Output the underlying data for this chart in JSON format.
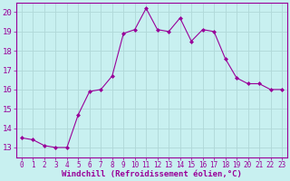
{
  "x": [
    0,
    1,
    2,
    3,
    4,
    5,
    6,
    7,
    8,
    9,
    10,
    11,
    12,
    13,
    14,
    15,
    16,
    17,
    18,
    19,
    20,
    21,
    22,
    23
  ],
  "y": [
    13.5,
    13.4,
    13.1,
    13.0,
    13.0,
    14.7,
    15.9,
    16.0,
    16.7,
    18.9,
    19.1,
    20.2,
    19.1,
    19.0,
    19.7,
    18.5,
    19.1,
    19.0,
    17.6,
    16.6,
    16.3,
    16.3,
    16.0,
    16.0
  ],
  "line_color": "#990099",
  "marker": "D",
  "marker_size": 2.0,
  "bg_color": "#c8f0f0",
  "grid_color": "#b0d8d8",
  "xlabel": "Windchill (Refroidissement éolien,°C)",
  "ylim": [
    12.5,
    20.5
  ],
  "xlim": [
    -0.5,
    23.5
  ],
  "yticks": [
    13,
    14,
    15,
    16,
    17,
    18,
    19,
    20
  ],
  "xticks": [
    0,
    1,
    2,
    3,
    4,
    5,
    6,
    7,
    8,
    9,
    10,
    11,
    12,
    13,
    14,
    15,
    16,
    17,
    18,
    19,
    20,
    21,
    22,
    23
  ],
  "xlabel_fontsize": 6.5,
  "tick_fontsize": 5.5,
  "ytick_fontsize": 6.5
}
